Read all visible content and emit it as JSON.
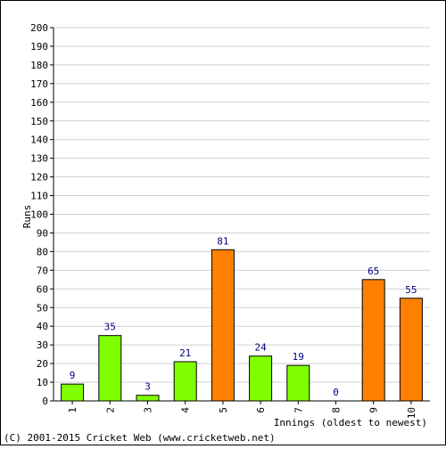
{
  "chart_data": {
    "type": "bar",
    "categories": [
      "1",
      "2",
      "3",
      "4",
      "5",
      "6",
      "7",
      "8",
      "9",
      "10"
    ],
    "values": [
      9,
      35,
      3,
      21,
      81,
      24,
      19,
      0,
      65,
      55
    ],
    "bar_colors": [
      "#80ff00",
      "#80ff00",
      "#80ff00",
      "#80ff00",
      "#ff8000",
      "#80ff00",
      "#80ff00",
      "#80ff00",
      "#ff8000",
      "#ff8000"
    ],
    "title": "",
    "xlabel": "Innings (oldest to newest)",
    "ylabel": "Runs",
    "ylim": [
      0,
      200
    ],
    "yticks": [
      "0",
      "10",
      "20",
      "30",
      "40",
      "50",
      "60",
      "70",
      "80",
      "90",
      "100",
      "110",
      "120",
      "130",
      "140",
      "150",
      "160",
      "170",
      "180",
      "190",
      "200"
    ],
    "grid": true,
    "data_labels": true
  },
  "footer": {
    "copyright": "(C) 2001-2015 Cricket Web (www.cricketweb.net)"
  }
}
